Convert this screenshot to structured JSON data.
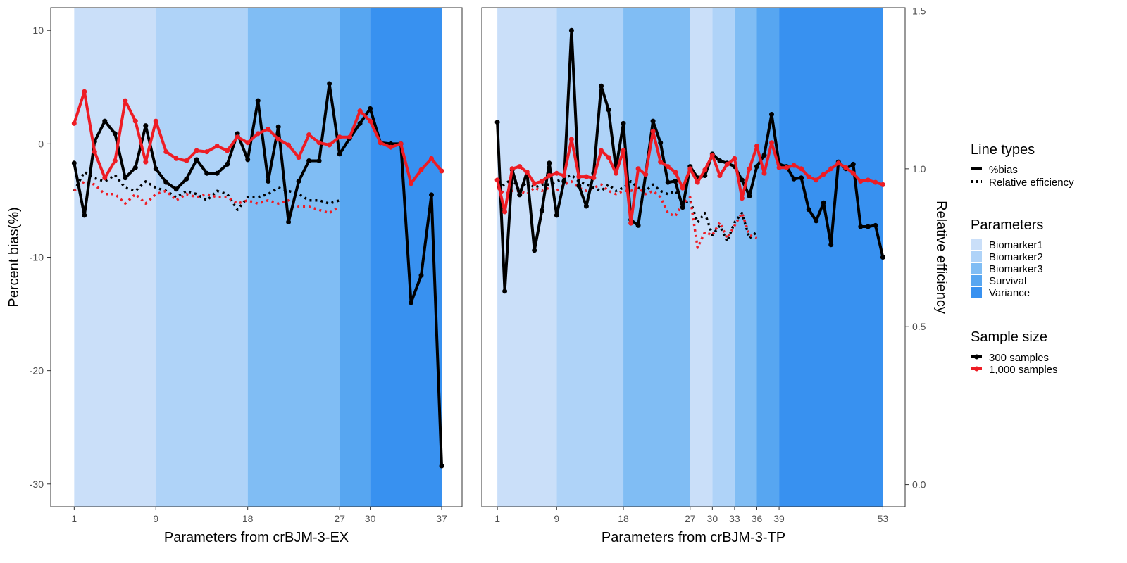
{
  "chart_data": {
    "type": "line",
    "left_axis": {
      "label": "Percent bias(%)",
      "ylim": [
        -32,
        12
      ],
      "ticks": [
        10,
        0,
        -10,
        -20,
        -30
      ],
      "tick_labels": [
        "10",
        "0",
        "-10",
        "-20",
        "-30"
      ]
    },
    "right_axis": {
      "label": "Relative efficiency",
      "ylim": [
        -0.07,
        1.51
      ],
      "ticks": [
        1.5,
        1.0,
        0.5,
        0.0
      ],
      "tick_labels": [
        "1.5",
        "1.0",
        "0.5",
        "0.0"
      ]
    },
    "panels": [
      {
        "xlabel": "Parameters from crBJM-3-EX",
        "xlim": [
          -1.3,
          39
        ],
        "x_ticks": [
          1,
          9,
          18,
          27,
          30,
          37
        ],
        "x_tick_labels": [
          "1",
          "9",
          "18",
          "27",
          "30",
          "37"
        ],
        "bands": [
          {
            "group": "Biomarker1",
            "start": 1,
            "end": 9
          },
          {
            "group": "Biomarker2",
            "start": 9,
            "end": 18
          },
          {
            "group": "Biomarker3",
            "start": 18,
            "end": 27
          },
          {
            "group": "Survival",
            "start": 27,
            "end": 30
          },
          {
            "group": "Variance",
            "start": 30,
            "end": 37
          }
        ],
        "series": [
          {
            "name": "300 samples %bias",
            "values": [
              -1.7,
              -6.3,
              0.2,
              2.0,
              0.9,
              -3.0,
              -2.1,
              1.6,
              -2.2,
              -3.4,
              -4.0,
              -3.1,
              -1.4,
              -2.6,
              -2.6,
              -1.8,
              0.9,
              -1.4,
              3.8,
              -3.3,
              1.5,
              -6.9,
              -3.3,
              -1.5,
              -1.5,
              5.3,
              -0.9,
              0.5,
              1.8,
              3.1,
              0.1,
              0.0,
              0.0,
              -14.0,
              -11.6,
              -4.5,
              -28.4
            ]
          },
          {
            "name": "1,000 samples %bias",
            "values": [
              1.8,
              4.6,
              -0.7,
              -3.0,
              -1.5,
              3.8,
              2.0,
              -1.6,
              2.0,
              -0.7,
              -1.3,
              -1.5,
              -0.6,
              -0.7,
              -0.2,
              -0.6,
              0.6,
              0.1,
              0.9,
              1.3,
              0.4,
              -0.1,
              -1.2,
              0.8,
              0.1,
              -0.1,
              0.6,
              0.6,
              2.9,
              2.0,
              0.1,
              -0.3,
              0.0,
              -3.5,
              -2.3,
              -1.3,
              -2.4
            ]
          },
          {
            "name": "300 samples Relative efficiency",
            "values": [
              0.93,
              0.99,
              0.97,
              0.96,
              0.98,
              0.94,
              0.93,
              0.96,
              0.94,
              0.93,
              0.91,
              0.93,
              0.92,
              0.9,
              0.93,
              0.92,
              0.87,
              0.91,
              0.91,
              0.92,
              0.94,
              0.93,
              0.92,
              0.9,
              0.9,
              0.89,
              0.9
            ]
          },
          {
            "name": "1,000 samples Relative efficiency",
            "values": [
              0.93,
              0.96,
              0.95,
              0.92,
              0.92,
              0.89,
              0.92,
              0.89,
              0.92,
              0.93,
              0.9,
              0.92,
              0.91,
              0.92,
              0.91,
              0.91,
              0.89,
              0.9,
              0.89,
              0.9,
              0.89,
              0.9,
              0.88,
              0.88,
              0.87,
              0.86,
              0.88
            ]
          }
        ]
      },
      {
        "xlabel": "Parameters from crBJM-3-TP",
        "xlim": [
          -1.1,
          56
        ],
        "x_ticks": [
          1,
          9,
          18,
          27,
          30,
          33,
          36,
          39,
          53
        ],
        "x_tick_labels": [
          "1",
          "9",
          "18",
          "27",
          "30",
          "33",
          "36",
          "39",
          "53"
        ],
        "bands": [
          {
            "group": "Biomarker1",
            "start": 1,
            "end": 9
          },
          {
            "group": "Biomarker2",
            "start": 9,
            "end": 18
          },
          {
            "group": "Biomarker3",
            "start": 18,
            "end": 27
          },
          {
            "group": "Biomarker1",
            "start": 27,
            "end": 30
          },
          {
            "group": "Biomarker2",
            "start": 30,
            "end": 33
          },
          {
            "group": "Biomarker3",
            "start": 33,
            "end": 36
          },
          {
            "group": "Survival",
            "start": 36,
            "end": 39
          },
          {
            "group": "Variance",
            "start": 39,
            "end": 53
          }
        ],
        "series": [
          {
            "name": "300 samples %bias",
            "values": [
              1.9,
              -13.0,
              -2.3,
              -4.5,
              -2.5,
              -9.4,
              -5.9,
              -1.7,
              -6.3,
              -3.3,
              10.0,
              -3.7,
              -5.5,
              -2.6,
              5.1,
              3.0,
              -2.2,
              1.8,
              -6.7,
              -7.2,
              -2.7,
              2.0,
              0.1,
              -3.4,
              -3.3,
              -5.6,
              -2.0,
              -3.0,
              -2.8,
              -0.9,
              -1.5,
              -1.7,
              -2.0,
              -3.2,
              -4.6,
              -2.0,
              -1.0,
              2.6,
              -1.8,
              -2.0,
              -3.1,
              -3.0,
              -5.8,
              -6.8,
              -5.2,
              -8.9,
              -1.6,
              -2.2,
              -1.8,
              -7.3,
              -7.3,
              -7.2,
              -10.0
            ]
          },
          {
            "name": "1,000 samples %bias",
            "values": [
              -3.2,
              -6.0,
              -2.2,
              -2.0,
              -2.5,
              -3.5,
              -3.3,
              -2.8,
              -2.6,
              -2.8,
              0.4,
              -2.9,
              -2.9,
              -3.0,
              -0.6,
              -1.2,
              -2.6,
              -0.6,
              -7.0,
              -2.2,
              -2.7,
              1.1,
              -1.6,
              -2.0,
              -2.5,
              -3.9,
              -2.2,
              -3.4,
              -2.3,
              -1.0,
              -2.8,
              -1.8,
              -1.3,
              -4.8,
              -2.2,
              -0.2,
              -2.6,
              0.1,
              -2.1,
              -2.1,
              -1.9,
              -2.2,
              -2.9,
              -3.2,
              -2.7,
              -2.2,
              -1.7,
              -2.1,
              -2.6,
              -3.3,
              -3.2,
              -3.4,
              -3.6
            ]
          },
          {
            "name": "300 samples Relative efficiency",
            "values": [
              0.94,
              0.95,
              0.97,
              0.93,
              0.96,
              0.94,
              0.95,
              0.95,
              0.96,
              0.97,
              0.98,
              0.96,
              0.95,
              0.94,
              0.93,
              0.95,
              0.93,
              0.94,
              0.96,
              0.94,
              0.93,
              0.95,
              0.93,
              0.92,
              0.93,
              0.89,
              0.9,
              0.83,
              0.86,
              0.79,
              0.82,
              0.77,
              0.83,
              0.86,
              0.78,
              0.8
            ]
          },
          {
            "name": "1,000 samples Relative efficiency",
            "values": [
              0.94,
              0.92,
              0.93,
              0.93,
              0.92,
              0.94,
              0.93,
              0.94,
              0.93,
              0.95,
              0.96,
              0.94,
              0.93,
              0.94,
              0.95,
              0.93,
              0.92,
              0.93,
              0.93,
              0.94,
              0.92,
              0.93,
              0.91,
              0.86,
              0.85,
              0.89,
              0.91,
              0.75,
              0.8,
              0.79,
              0.83,
              0.78,
              0.82,
              0.86,
              0.79,
              0.78
            ]
          }
        ]
      }
    ],
    "legend": {
      "line_types": {
        "title": "Line types",
        "items": [
          "%bias",
          "Relative efficiency"
        ]
      },
      "parameters": {
        "title": "Parameters",
        "items": [
          "Biomarker1",
          "Biomarker2",
          "Biomarker3",
          "Survival",
          "Variance"
        ]
      },
      "sample_size": {
        "title": "Sample size",
        "items": [
          "300 samples",
          "1,000 samples"
        ]
      }
    },
    "colors": {
      "Biomarker1": "#cadff9",
      "Biomarker2": "#afd3f8",
      "Biomarker3": "#80bdf4",
      "Survival": "#57a6f1",
      "Variance": "#3891f0",
      "300 samples": "#000000",
      "1,000 samples": "#ee1c24"
    }
  }
}
